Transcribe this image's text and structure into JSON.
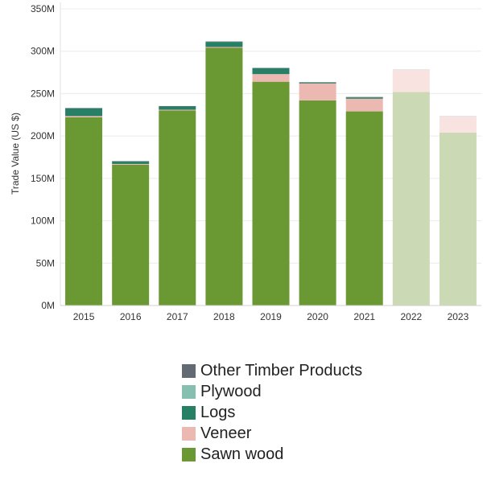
{
  "chart_data": {
    "type": "bar",
    "stacked": true,
    "ylabel": "Trade Value (US $)",
    "ylim": [
      0,
      350000000
    ],
    "yticks": [
      0,
      50000000,
      100000000,
      150000000,
      200000000,
      250000000,
      300000000,
      350000000
    ],
    "ytick_labels": [
      "0M",
      "50M",
      "100M",
      "150M",
      "200M",
      "250M",
      "300M",
      "350M"
    ],
    "categories": [
      "2015",
      "2016",
      "2017",
      "2018",
      "2019",
      "2020",
      "2021",
      "2022",
      "2023"
    ],
    "faded_categories": [
      "2022",
      "2023"
    ],
    "grid": true,
    "legend_position": "bottom",
    "series": [
      {
        "name": "Sawn wood",
        "color": "#6a9832",
        "faded_color": "#cbdab5",
        "values": [
          222000000,
          166000000,
          230000000,
          304000000,
          264000000,
          242000000,
          229000000,
          252000000,
          204000000
        ]
      },
      {
        "name": "Veneer",
        "color": "#ecb8b2",
        "faded_color": "#f8e3e1",
        "values": [
          1500000,
          1000000,
          1000000,
          1000000,
          9000000,
          20000000,
          15000000,
          26000000,
          19000000
        ]
      },
      {
        "name": "Logs",
        "color": "#268065",
        "faded_color": "#c6ddd6",
        "values": [
          9000000,
          3000000,
          4000000,
          6000000,
          7000000,
          1000000,
          1500000,
          0,
          0
        ]
      },
      {
        "name": "Plywood",
        "color": "#86bfb0",
        "faded_color": "#dcece8",
        "values": [
          0,
          0,
          0,
          0,
          0,
          0,
          0,
          0,
          0
        ]
      },
      {
        "name": "Other Timber Products",
        "color": "#636a74",
        "faded_color": "#d2d5d9",
        "values": [
          500000,
          300000,
          300000,
          500000,
          300000,
          500000,
          500000,
          500000,
          500000
        ]
      }
    ],
    "legend_order": [
      "Other Timber Products",
      "Plywood",
      "Logs",
      "Veneer",
      "Sawn wood"
    ]
  }
}
